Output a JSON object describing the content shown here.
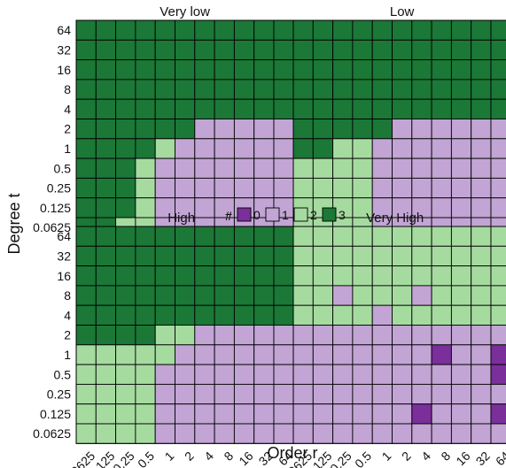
{
  "chart_data": {
    "type": "heatmap",
    "xlabel": "Order r",
    "ylabel": "Degree t",
    "x_categories": [
      "0.0625",
      "0.125",
      "0.25",
      "0.5",
      "1",
      "2",
      "4",
      "8",
      "16",
      "32",
      "64"
    ],
    "y_categories_top_to_bottom": [
      "64",
      "32",
      "16",
      "8",
      "4",
      "2",
      "1",
      "0.5",
      "0.25",
      "0.125",
      "0.0625"
    ],
    "legend": {
      "title": "#",
      "entries": [
        {
          "label": "0",
          "color": "#7B2F9B"
        },
        {
          "label": "1",
          "color": "#C2A5D4"
        },
        {
          "label": "2",
          "color": "#A6DBA0"
        },
        {
          "label": "3",
          "color": "#1B7837"
        }
      ]
    },
    "panels": [
      {
        "title": "Very low",
        "rows_top_to_bottom": [
          [
            3,
            3,
            3,
            3,
            3,
            3,
            3,
            3,
            3,
            3,
            3
          ],
          [
            3,
            3,
            3,
            3,
            3,
            3,
            3,
            3,
            3,
            3,
            3
          ],
          [
            3,
            3,
            3,
            3,
            3,
            3,
            3,
            3,
            3,
            3,
            3
          ],
          [
            3,
            3,
            3,
            3,
            3,
            3,
            3,
            3,
            3,
            3,
            3
          ],
          [
            3,
            3,
            3,
            3,
            3,
            3,
            3,
            3,
            3,
            3,
            3
          ],
          [
            3,
            3,
            3,
            3,
            3,
            3,
            1,
            1,
            1,
            1,
            1
          ],
          [
            3,
            3,
            3,
            3,
            2,
            1,
            1,
            1,
            1,
            1,
            1
          ],
          [
            3,
            3,
            3,
            2,
            1,
            1,
            1,
            1,
            1,
            1,
            1
          ],
          [
            3,
            3,
            3,
            2,
            1,
            1,
            1,
            1,
            1,
            1,
            1
          ],
          [
            3,
            3,
            3,
            2,
            1,
            1,
            1,
            1,
            1,
            1,
            1
          ],
          [
            3,
            3,
            2,
            2,
            1,
            1,
            1,
            1,
            1,
            1,
            1
          ]
        ]
      },
      {
        "title": "Low",
        "rows_top_to_bottom": [
          [
            3,
            3,
            3,
            3,
            3,
            3,
            3,
            3,
            3,
            3,
            3
          ],
          [
            3,
            3,
            3,
            3,
            3,
            3,
            3,
            3,
            3,
            3,
            3
          ],
          [
            3,
            3,
            3,
            3,
            3,
            3,
            3,
            3,
            3,
            3,
            3
          ],
          [
            3,
            3,
            3,
            3,
            3,
            3,
            3,
            3,
            3,
            3,
            3
          ],
          [
            3,
            3,
            3,
            3,
            3,
            3,
            3,
            3,
            3,
            3,
            3
          ],
          [
            3,
            3,
            3,
            3,
            3,
            1,
            1,
            1,
            1,
            1,
            1
          ],
          [
            3,
            3,
            2,
            2,
            1,
            1,
            1,
            1,
            1,
            1,
            1
          ],
          [
            2,
            2,
            2,
            2,
            1,
            1,
            1,
            1,
            1,
            1,
            1
          ],
          [
            2,
            2,
            2,
            2,
            1,
            1,
            1,
            1,
            1,
            1,
            1
          ],
          [
            2,
            2,
            2,
            2,
            1,
            1,
            1,
            1,
            1,
            1,
            1
          ],
          [
            2,
            2,
            2,
            2,
            1,
            1,
            1,
            1,
            1,
            1,
            1
          ]
        ]
      },
      {
        "title": "High",
        "rows_top_to_bottom": [
          [
            3,
            3,
            3,
            3,
            3,
            3,
            3,
            3,
            3,
            3,
            3
          ],
          [
            3,
            3,
            3,
            3,
            3,
            3,
            3,
            3,
            3,
            3,
            3
          ],
          [
            3,
            3,
            3,
            3,
            3,
            3,
            3,
            3,
            3,
            3,
            3
          ],
          [
            3,
            3,
            3,
            3,
            3,
            3,
            3,
            3,
            3,
            3,
            3
          ],
          [
            3,
            3,
            3,
            3,
            3,
            3,
            3,
            3,
            3,
            3,
            3
          ],
          [
            3,
            3,
            3,
            3,
            2,
            2,
            1,
            1,
            1,
            1,
            1
          ],
          [
            2,
            2,
            2,
            2,
            2,
            1,
            1,
            1,
            1,
            1,
            1
          ],
          [
            2,
            2,
            2,
            2,
            1,
            1,
            1,
            1,
            1,
            1,
            1
          ],
          [
            2,
            2,
            2,
            2,
            1,
            1,
            1,
            1,
            1,
            1,
            1
          ],
          [
            2,
            2,
            2,
            2,
            1,
            1,
            1,
            1,
            1,
            1,
            1
          ],
          [
            2,
            2,
            2,
            2,
            1,
            1,
            1,
            1,
            1,
            1,
            1
          ]
        ]
      },
      {
        "title": "Very High",
        "rows_top_to_bottom": [
          [
            2,
            2,
            2,
            2,
            2,
            2,
            2,
            2,
            2,
            2,
            2
          ],
          [
            2,
            2,
            2,
            2,
            2,
            2,
            2,
            2,
            2,
            2,
            2
          ],
          [
            2,
            2,
            2,
            2,
            2,
            2,
            2,
            2,
            2,
            2,
            2
          ],
          [
            2,
            2,
            1,
            2,
            2,
            2,
            1,
            2,
            2,
            2,
            2
          ],
          [
            2,
            2,
            2,
            2,
            1,
            2,
            2,
            2,
            2,
            2,
            2
          ],
          [
            1,
            1,
            1,
            1,
            1,
            1,
            1,
            1,
            1,
            1,
            1
          ],
          [
            1,
            1,
            1,
            1,
            1,
            1,
            1,
            0,
            1,
            1,
            0
          ],
          [
            1,
            1,
            1,
            1,
            1,
            1,
            1,
            1,
            1,
            1,
            0
          ],
          [
            1,
            1,
            1,
            1,
            1,
            1,
            1,
            1,
            1,
            1,
            1
          ],
          [
            1,
            1,
            1,
            1,
            1,
            1,
            0,
            1,
            1,
            1,
            0
          ],
          [
            1,
            1,
            1,
            1,
            1,
            1,
            1,
            1,
            1,
            1,
            1
          ]
        ]
      }
    ]
  }
}
